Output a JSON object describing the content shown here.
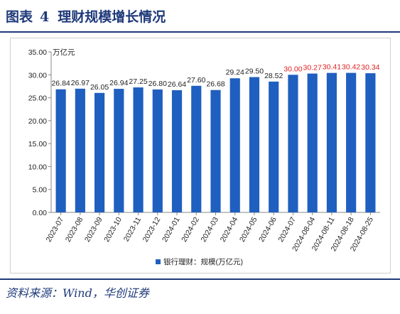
{
  "figure": {
    "label": "图表",
    "number": "4",
    "title": "理财规模增长情况",
    "source": "资料来源：Wind，华创证券"
  },
  "colors": {
    "bar": "#1f5fbf",
    "label_normal": "#222222",
    "label_highlight": "#e02020",
    "title": "#1f3a7a"
  },
  "chart_data": {
    "type": "bar",
    "title": "",
    "xlabel": "",
    "ylabel": "",
    "y_unit": "万亿元",
    "ylim": [
      0,
      35
    ],
    "yticks": [
      "0.00",
      "5.00",
      "10.00",
      "15.00",
      "20.00",
      "25.00",
      "30.00",
      "35.00"
    ],
    "grid": false,
    "legend_position": "bottom",
    "categories": [
      "2023-07",
      "2023-08",
      "2023-09",
      "2023-10",
      "2023-11",
      "2023-12",
      "2024-01",
      "2024-02",
      "2024-03",
      "2024-04",
      "2024-05",
      "2024-06",
      "2024-07",
      "2024-08-04",
      "2024-08-11",
      "2024-08-18",
      "2024-08-25"
    ],
    "series": [
      {
        "name": "银行理财：规模(万亿元)",
        "values": [
          26.84,
          26.97,
          26.05,
          26.94,
          27.25,
          26.8,
          26.64,
          27.6,
          26.68,
          29.24,
          29.5,
          28.52,
          30.0,
          30.27,
          30.41,
          30.42,
          30.34
        ],
        "labels": [
          "26.84",
          "26.97",
          "26.05",
          "26.94",
          "27.25",
          "26.80",
          "26.64",
          "27.60",
          "26.68",
          "29.24",
          "29.50",
          "28.52",
          "30.00",
          "30.27",
          "30.41",
          "30.42",
          "30.34"
        ],
        "highlight": [
          false,
          false,
          false,
          false,
          false,
          false,
          false,
          false,
          false,
          false,
          false,
          false,
          true,
          true,
          true,
          true,
          true
        ]
      }
    ]
  }
}
